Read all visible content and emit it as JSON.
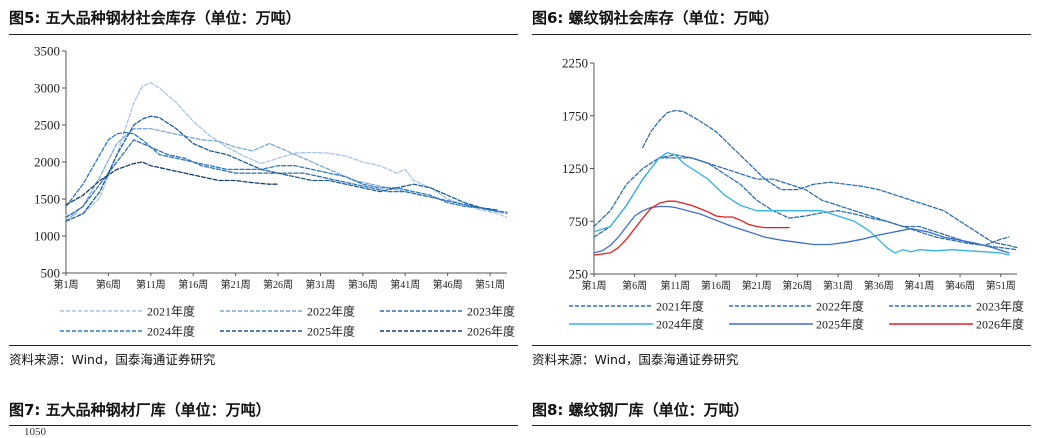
{
  "figures": {
    "fig5_title": "图5: 五大品种钢材社会库存（单位：万吨）",
    "fig6_title": "图6: 螺纹钢社会库存（单位：万吨）",
    "fig7_title": "图7: 五大品种钢材厂库（单位：万吨）",
    "fig8_title": "图8: 螺纹钢厂库（单位：万吨）",
    "source_left": "资料来源：Wind，国泰海通证券研究",
    "source_right": "资料来源：Wind，国泰海通证券研究",
    "fig7_partial_tick": "1050"
  },
  "colors": {
    "s2021_left": "#a9c5e6",
    "s2022_left": "#7ea9d6",
    "s2023_left": "#2f6fb3",
    "s2024_left": "#2b7bc0",
    "s2025_left": "#1d5c9a",
    "s2026_left": "#173e73",
    "s2021_right": "#2f6fb3",
    "s2022_right": "#2f6fb3",
    "s2023_right": "#2f6fb3",
    "s2024_right": "#33b3ea",
    "s2025_right": "#3d6fd1",
    "s2026_right": "#e02020"
  },
  "chart_data": [
    {
      "type": "line",
      "title": "图5: 五大品种钢材社会库存（单位：万吨）",
      "x_tick_labels": [
        "第1周",
        "第6周",
        "第11周",
        "第16周",
        "第21周",
        "第26周",
        "第31周",
        "第36周",
        "第41周",
        "第46周",
        "第51周"
      ],
      "x_ticks_week": [
        1,
        6,
        11,
        16,
        21,
        26,
        31,
        36,
        41,
        46,
        51
      ],
      "ylim": [
        500,
        3500
      ],
      "y_ticks": [
        "500",
        "1000",
        "1500",
        "2000",
        "2500",
        "3000",
        "3500"
      ],
      "legend": "bottom, 3 columns",
      "series": [
        {
          "name": "2021年度",
          "dash": "4,2",
          "color_key": "s2021_left",
          "x": [
            1,
            3,
            5,
            7,
            8,
            9,
            10,
            11,
            12,
            14,
            16,
            18,
            20,
            22,
            24,
            26,
            28,
            30,
            32,
            34,
            36,
            38,
            40,
            41,
            42,
            44,
            46,
            48,
            50,
            52,
            53
          ],
          "y": [
            1280,
            1300,
            1520,
            2100,
            2450,
            2800,
            3020,
            3070,
            3000,
            2800,
            2550,
            2350,
            2200,
            2080,
            1980,
            2050,
            2120,
            2130,
            2120,
            2080,
            2000,
            1950,
            1850,
            1900,
            1750,
            1650,
            1500,
            1420,
            1350,
            1300,
            1250
          ]
        },
        {
          "name": "2022年度",
          "dash": "4,2",
          "color_key": "s2022_left",
          "x": [
            1,
            3,
            5,
            7,
            9,
            11,
            13,
            15,
            17,
            19,
            21,
            23,
            25,
            27,
            29,
            31,
            33,
            35,
            37,
            39,
            41,
            43,
            45,
            47,
            49,
            51,
            53
          ],
          "y": [
            1200,
            1400,
            1800,
            2250,
            2450,
            2450,
            2400,
            2350,
            2300,
            2280,
            2200,
            2150,
            2250,
            2150,
            2050,
            1950,
            1850,
            1750,
            1700,
            1650,
            1600,
            1550,
            1500,
            1450,
            1400,
            1350,
            1300
          ]
        },
        {
          "name": "2023年度",
          "dash": "4,2",
          "color_key": "s2023_left",
          "x": [
            1,
            3,
            5,
            7,
            9,
            11,
            13,
            15,
            17,
            19,
            21,
            23,
            25,
            27,
            29,
            31,
            33,
            35,
            37,
            39,
            41,
            43,
            45,
            47,
            49,
            51,
            53
          ],
          "y": [
            1250,
            1400,
            1700,
            2000,
            2300,
            2200,
            2100,
            2050,
            1950,
            1900,
            1850,
            1850,
            1850,
            1850,
            1850,
            1800,
            1750,
            1700,
            1650,
            1600,
            1600,
            1550,
            1500,
            1450,
            1400,
            1350,
            1320
          ]
        },
        {
          "name": "2024年度",
          "dash": "4,2",
          "color_key": "s2024_left",
          "x": [
            1,
            3,
            5,
            6,
            7,
            8,
            9,
            10,
            11,
            12,
            14,
            16,
            18,
            20,
            22,
            24,
            26,
            28,
            30,
            32,
            34,
            36,
            38,
            40,
            42,
            44,
            46,
            48,
            50,
            52
          ],
          "y": [
            1400,
            1700,
            2100,
            2300,
            2380,
            2400,
            2380,
            2300,
            2200,
            2100,
            2050,
            2000,
            1950,
            1900,
            1900,
            1900,
            1950,
            1950,
            1900,
            1850,
            1800,
            1700,
            1650,
            1650,
            1600,
            1550,
            1450,
            1400,
            1380,
            1330
          ]
        },
        {
          "name": "2025年度",
          "dash": "4,2",
          "color_key": "s2025_left",
          "x": [
            1,
            3,
            5,
            7,
            9,
            10,
            11,
            12,
            14,
            16,
            18,
            20,
            22,
            24,
            26,
            28,
            30,
            32,
            34,
            36,
            38,
            40,
            42,
            44,
            46,
            48,
            50,
            52
          ],
          "y": [
            1200,
            1300,
            1600,
            2100,
            2500,
            2580,
            2620,
            2600,
            2450,
            2250,
            2150,
            2100,
            2000,
            1900,
            1850,
            1800,
            1750,
            1750,
            1700,
            1650,
            1600,
            1650,
            1700,
            1650,
            1550,
            1450,
            1380,
            1350
          ]
        },
        {
          "name": "2026年度",
          "dash": "4,2",
          "color_key": "s2026_left",
          "x": [
            1,
            3,
            5,
            7,
            9,
            10,
            11,
            13,
            15,
            17,
            19,
            21,
            23,
            25,
            26
          ],
          "y": [
            1420,
            1550,
            1750,
            1900,
            1980,
            2000,
            1950,
            1900,
            1850,
            1800,
            1750,
            1750,
            1720,
            1700,
            1700
          ]
        }
      ]
    },
    {
      "type": "line",
      "title": "图6: 螺纹钢社会库存（单位：万吨）",
      "x_tick_labels": [
        "第1周",
        "第6周",
        "第11周",
        "第16周",
        "第21周",
        "第26周",
        "第31周",
        "第36周",
        "第41周",
        "第46周",
        "第51周"
      ],
      "x_ticks_week": [
        1,
        6,
        11,
        16,
        21,
        26,
        31,
        36,
        41,
        46,
        51
      ],
      "ylim": [
        250,
        2250
      ],
      "y_ticks": [
        "250",
        "750",
        "1250",
        "1750",
        "2250"
      ],
      "legend": "bottom, 3 columns",
      "series": [
        {
          "name": "2021年度",
          "dash": "4,2",
          "color_key": "s2021_right",
          "x": [
            7,
            8,
            9,
            10,
            11,
            12,
            14,
            16,
            18,
            20,
            22,
            24,
            26,
            28,
            30,
            32,
            34,
            36,
            38,
            40,
            42,
            44,
            46,
            48,
            50,
            52,
            53
          ],
          "y": [
            1450,
            1600,
            1700,
            1780,
            1800,
            1790,
            1700,
            1600,
            1450,
            1300,
            1150,
            1050,
            1050,
            1100,
            1120,
            1100,
            1080,
            1050,
            1000,
            950,
            900,
            850,
            750,
            650,
            550,
            520,
            500
          ]
        },
        {
          "name": "2022年度",
          "dash": "4,2",
          "color_key": "s2022_right",
          "x": [
            1,
            3,
            5,
            7,
            9,
            11,
            13,
            15,
            17,
            19,
            21,
            23,
            25,
            27,
            29,
            31,
            33,
            35,
            37,
            39,
            41,
            43,
            45,
            47,
            49,
            51,
            53
          ],
          "y": [
            600,
            700,
            900,
            1150,
            1350,
            1380,
            1350,
            1300,
            1200,
            1100,
            950,
            850,
            780,
            800,
            830,
            850,
            820,
            780,
            750,
            700,
            650,
            600,
            570,
            540,
            520,
            500,
            480
          ]
        },
        {
          "name": "2023年度",
          "dash": "4,2",
          "color_key": "s2023_right",
          "x": [
            1,
            3,
            5,
            7,
            9,
            11,
            13,
            15,
            17,
            19,
            21,
            23,
            25,
            27,
            29,
            31,
            33,
            35,
            37,
            39,
            41,
            43,
            45,
            47,
            49,
            51,
            52
          ],
          "y": [
            700,
            850,
            1100,
            1250,
            1350,
            1350,
            1350,
            1300,
            1250,
            1200,
            1150,
            1150,
            1100,
            1050,
            950,
            900,
            850,
            800,
            750,
            700,
            700,
            650,
            600,
            550,
            520,
            580,
            600
          ]
        },
        {
          "name": "2024年度",
          "dash": "",
          "color_key": "s2024_right",
          "x": [
            1,
            3,
            5,
            7,
            9,
            10,
            11,
            12,
            13,
            15,
            17,
            19,
            21,
            23,
            25,
            27,
            29,
            31,
            33,
            35,
            37,
            38,
            39,
            40,
            41,
            43,
            45,
            47,
            49,
            51,
            52
          ],
          "y": [
            650,
            700,
            900,
            1150,
            1350,
            1400,
            1380,
            1300,
            1250,
            1150,
            1000,
            900,
            850,
            850,
            850,
            850,
            850,
            800,
            750,
            650,
            500,
            450,
            480,
            460,
            480,
            470,
            480,
            470,
            460,
            450,
            430
          ]
        },
        {
          "name": "2025年度",
          "dash": "",
          "color_key": "s2025_right",
          "x": [
            1,
            2,
            3,
            4,
            5,
            6,
            7,
            8,
            9,
            10,
            11,
            12,
            14,
            16,
            18,
            20,
            22,
            24,
            26,
            28,
            30,
            32,
            34,
            36,
            38,
            40,
            42,
            44,
            46,
            48,
            50,
            52
          ],
          "y": [
            450,
            470,
            520,
            600,
            700,
            800,
            850,
            880,
            890,
            890,
            880,
            860,
            820,
            760,
            700,
            650,
            600,
            570,
            550,
            530,
            530,
            550,
            580,
            620,
            650,
            680,
            650,
            600,
            570,
            540,
            500,
            450
          ]
        },
        {
          "name": "2026年度",
          "dash": "",
          "color_key": "s2026_right",
          "x": [
            1,
            2,
            3,
            4,
            5,
            6,
            7,
            8,
            9,
            10,
            11,
            12,
            13,
            14,
            15,
            16,
            17,
            18,
            19,
            20,
            21,
            22,
            23,
            24,
            25
          ],
          "y": [
            430,
            440,
            450,
            500,
            580,
            680,
            780,
            870,
            920,
            940,
            940,
            920,
            900,
            870,
            840,
            800,
            790,
            790,
            760,
            720,
            700,
            690,
            690,
            690,
            690
          ]
        }
      ]
    }
  ]
}
